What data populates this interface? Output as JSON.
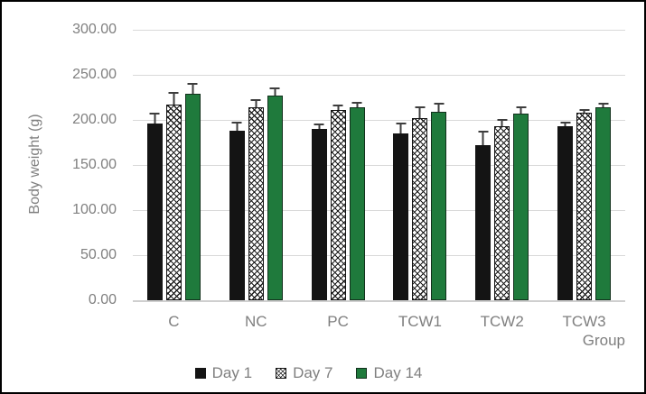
{
  "chart_data": {
    "type": "bar",
    "title": "",
    "ylabel": "Body weight (g)",
    "xlabel": "Group",
    "ylim": [
      0,
      300
    ],
    "ytick_step": 50,
    "ytick_labels": [
      "300.00",
      "250.00",
      "200.00",
      "150.00",
      "100.00",
      "50.00",
      "0.00"
    ],
    "grid": true,
    "legend_position": "bottom-center",
    "categories": [
      "C",
      "NC",
      "PC",
      "TCW1",
      "TCW2",
      "TCW3"
    ],
    "series": [
      {
        "name": "Day 1",
        "style": "solid-black",
        "color": "#141414",
        "values": [
          196,
          188,
          190,
          185,
          172,
          193
        ],
        "errors_plus": [
          12,
          10,
          6,
          12,
          16,
          5
        ]
      },
      {
        "name": "Day 7",
        "style": "crosshatch",
        "color": "#ffffff",
        "values": [
          217,
          214,
          211,
          202,
          193,
          208
        ],
        "errors_plus": [
          14,
          9,
          6,
          13,
          8,
          4
        ]
      },
      {
        "name": "Day 14",
        "style": "solid-green",
        "color": "#1f7a3c",
        "values": [
          229,
          227,
          214,
          209,
          207,
          214
        ],
        "errors_plus": [
          12,
          9,
          6,
          10,
          8,
          5
        ]
      }
    ],
    "colors": {
      "background": "#ffffff",
      "frame_border": "#000000",
      "gridline": "#d9d9d9",
      "axis_text": "#7f7f7f",
      "error_bar": "#3d3d3d",
      "bar_border": "#141414",
      "green_fill": "#1f7a3c"
    }
  }
}
